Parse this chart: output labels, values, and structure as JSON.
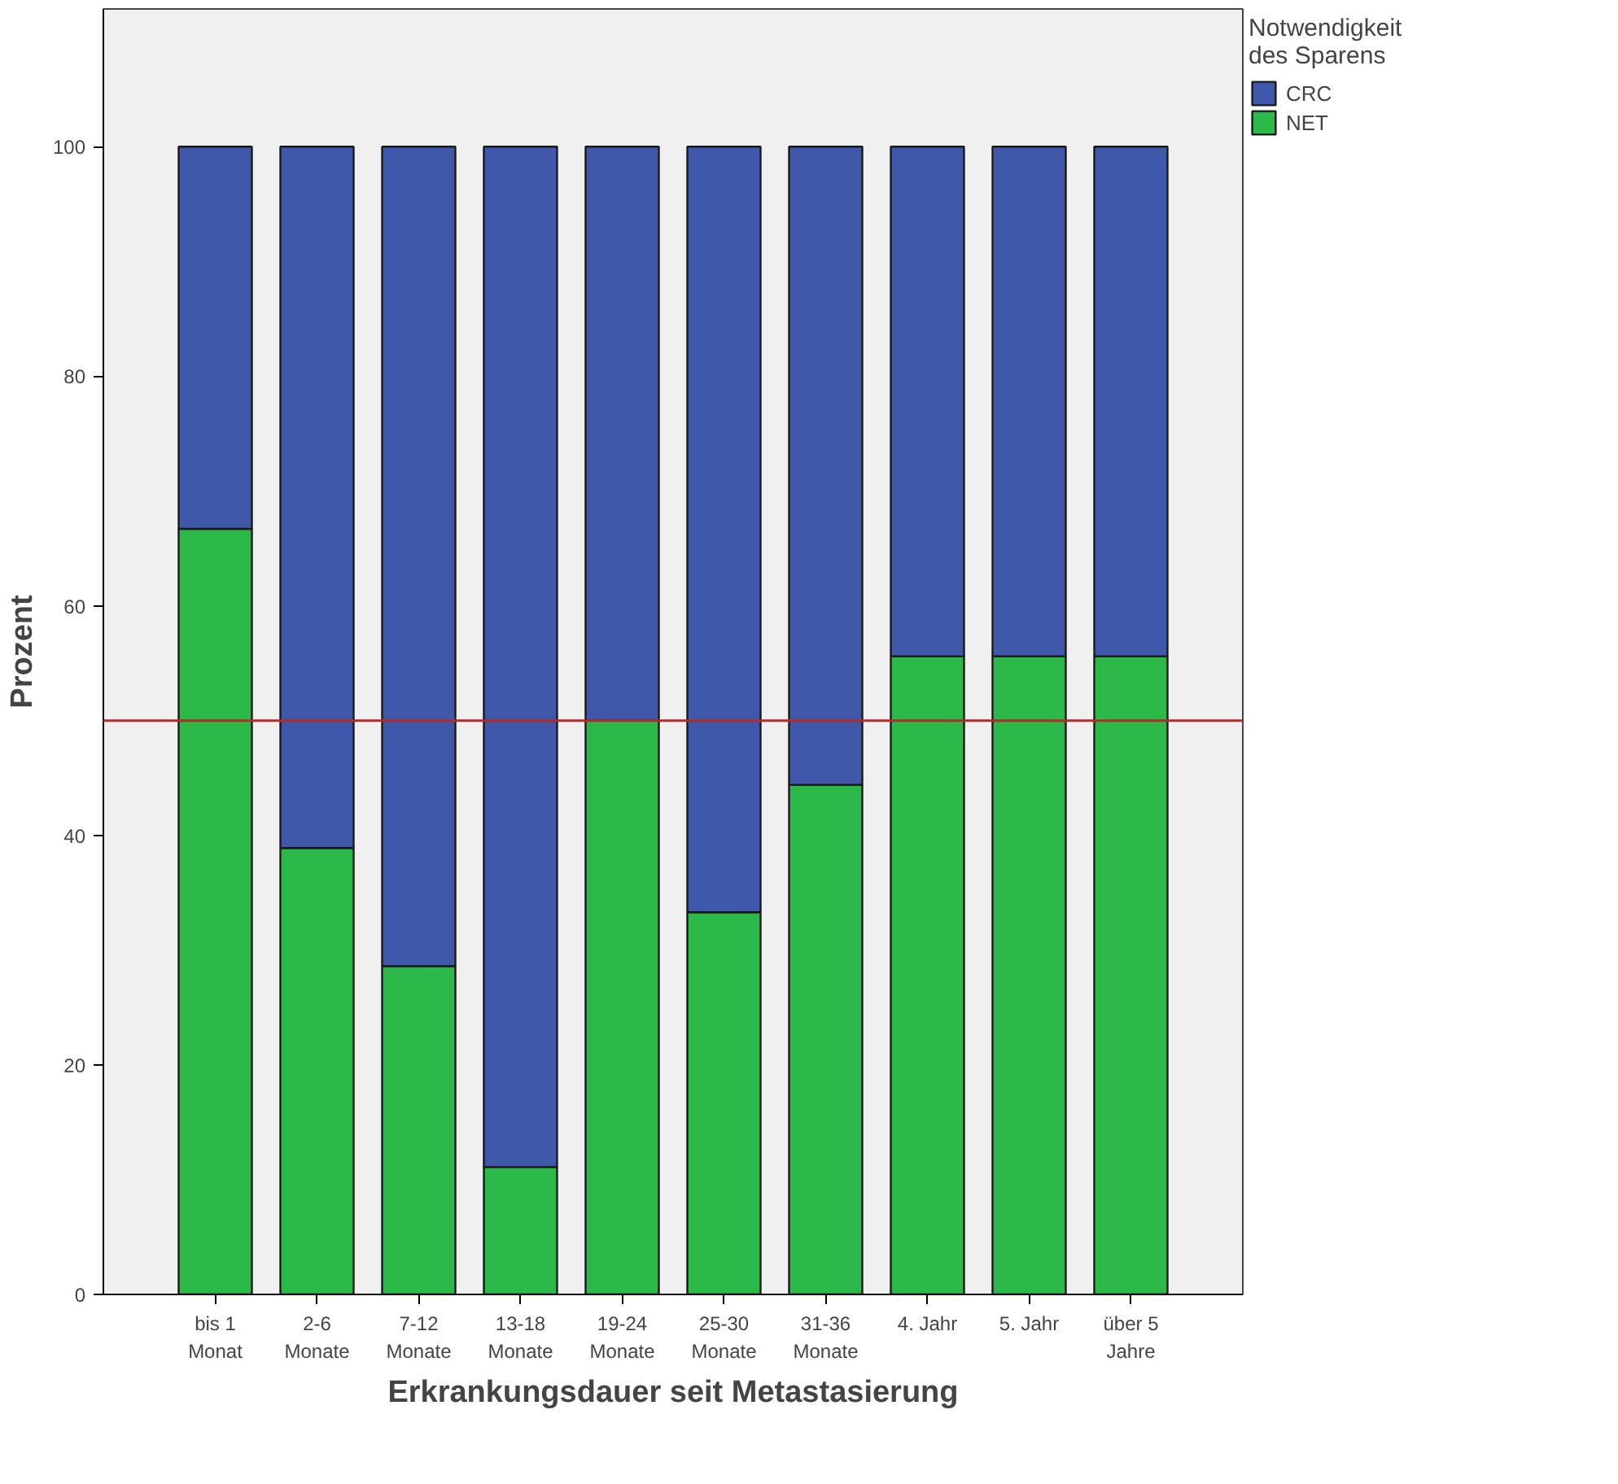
{
  "chart_data": {
    "type": "bar",
    "stacked": true,
    "xlabel": "Erkrankungsdauer seit Metastasierung",
    "ylabel": "Prozent",
    "legend_title": "Notwendigkeit\ndes Sparens",
    "categories": [
      "bis 1\nMonat",
      "2-6\nMonate",
      "7-12\nMonate",
      "13-18\nMonate",
      "19-24\nMonate",
      "25-30\nMonate",
      "31-36\nMonate",
      "4. Jahr",
      "5. Jahr",
      "über 5\nJahre"
    ],
    "series": [
      {
        "name": "NET",
        "color": "#2db84a",
        "values": [
          66.7,
          38.9,
          28.6,
          11.1,
          50,
          33.3,
          44.4,
          55.6,
          55.6,
          55.6
        ]
      },
      {
        "name": "CRC",
        "color": "#3f58a9",
        "values": [
          33.3,
          61.1,
          71.4,
          88.9,
          50,
          66.7,
          55.6,
          44.4,
          44.4,
          44.4
        ]
      }
    ],
    "ylim": [
      0,
      112
    ],
    "yticks": [
      0,
      20,
      40,
      60,
      80,
      100
    ],
    "grid": false,
    "legend": "top right",
    "ref_lines": [
      {
        "axis": "y",
        "value": 50,
        "color": "#b22a2a"
      }
    ]
  }
}
